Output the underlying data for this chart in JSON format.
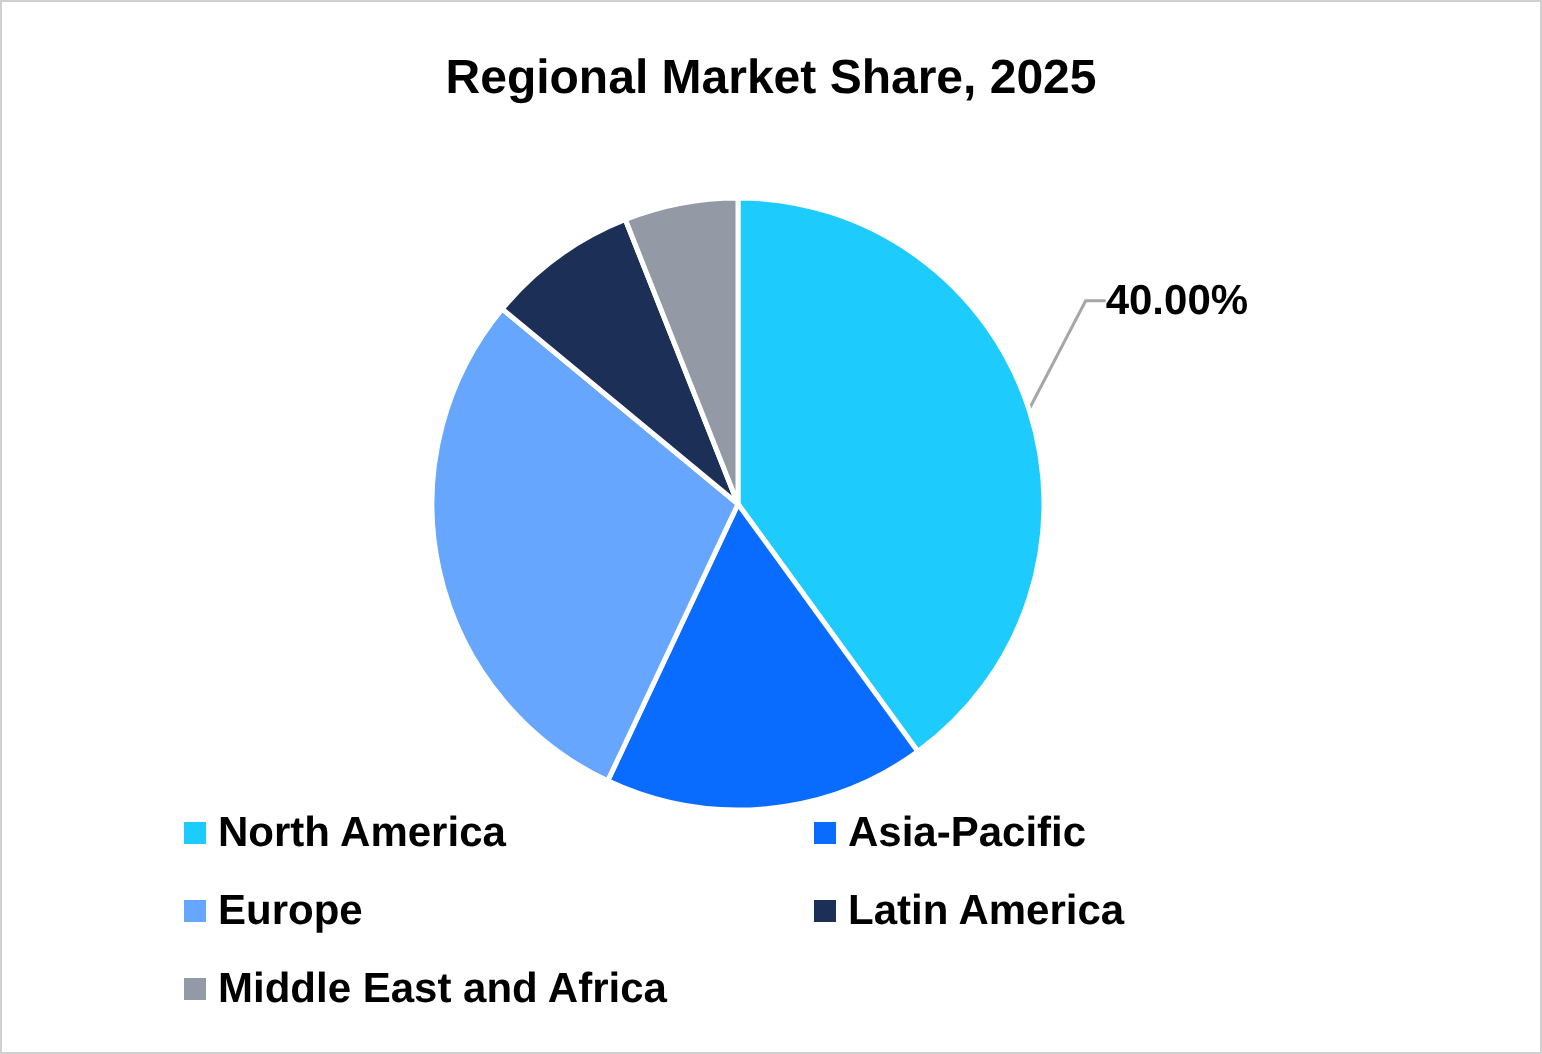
{
  "chart_data": {
    "type": "pie",
    "title": "Regional Market Share, 2025",
    "categories": [
      "North America",
      "Asia-Pacific",
      "Europe",
      "Latin America",
      "Middle East and Africa"
    ],
    "values": [
      40,
      17,
      29,
      8,
      6
    ],
    "colors": [
      "#1ecbfd",
      "#0a6cff",
      "#66a6ff",
      "#1c2f57",
      "#9499a6"
    ],
    "value_labels": [
      "40.00%",
      null,
      null,
      null,
      null
    ],
    "legend": "bottom"
  }
}
